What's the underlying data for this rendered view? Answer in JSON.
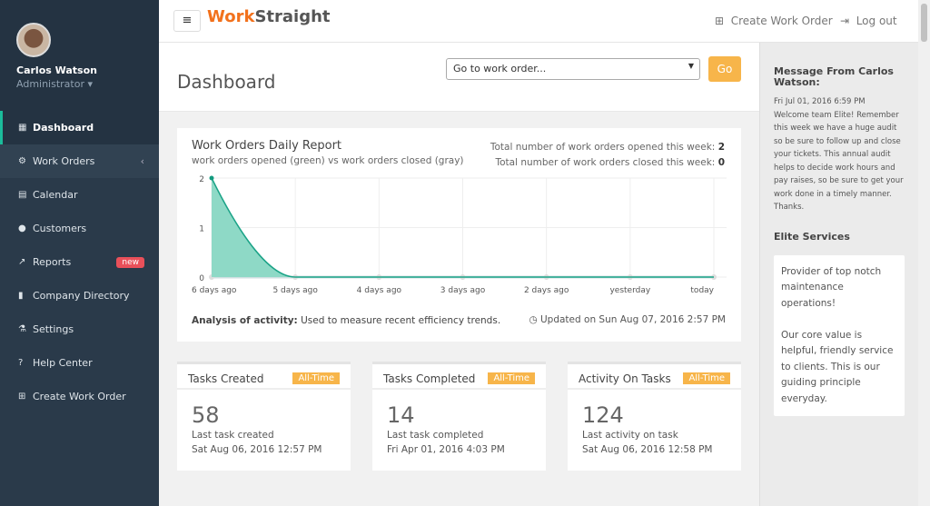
{
  "sidebar": {
    "user_name": "Carlos Watson",
    "user_role": "Administrator",
    "items": [
      {
        "label": "Dashboard",
        "icon": "th-large-icon"
      },
      {
        "label": "Work Orders",
        "icon": "cogs-icon"
      },
      {
        "label": "Calendar",
        "icon": "calendar-icon"
      },
      {
        "label": "Customers",
        "icon": "user-icon"
      },
      {
        "label": "Reports",
        "icon": "line-chart-icon",
        "badge": "new"
      },
      {
        "label": "Company Directory",
        "icon": "book-icon"
      },
      {
        "label": "Settings",
        "icon": "flask-icon"
      },
      {
        "label": "Help Center",
        "icon": "question-icon"
      },
      {
        "label": "Create Work Order",
        "icon": "plus-square-icon"
      }
    ]
  },
  "topbar": {
    "logo_a": "Work",
    "logo_b": "Straight",
    "create": "Create Work Order",
    "logout": "Log out"
  },
  "page": {
    "title": "Dashboard",
    "goto_placeholder": "Go to work order...",
    "go": "Go"
  },
  "report": {
    "title": "Work Orders Daily Report",
    "subtitle": "work orders opened (green) vs work orders closed (gray)",
    "opened_label": "Total number of work orders opened this week:",
    "opened": "2",
    "closed_label": "Total number of work orders closed this week:",
    "closed": "0",
    "analysis_label": "Analysis of activity:",
    "analysis": "Used to measure recent efficiency trends.",
    "updated": "Updated on Sun Aug 07, 2016 2:57 PM"
  },
  "chart_data": {
    "type": "area",
    "categories": [
      "6 days ago",
      "5 days ago",
      "4 days ago",
      "3 days ago",
      "2 days ago",
      "yesterday",
      "today"
    ],
    "series": [
      {
        "values": [
          2,
          0,
          0,
          0,
          0,
          0,
          0
        ],
        "color": "#1bbc9b"
      },
      {
        "values": [
          0,
          0,
          0,
          0,
          0,
          0,
          0
        ],
        "color": "#cccccc"
      }
    ],
    "yticks": [
      "0",
      "1",
      "2"
    ],
    "ylim": [
      0,
      2
    ],
    "grid": true
  },
  "stats": [
    {
      "title": "Tasks Created",
      "tag": "All-Time",
      "value": "58",
      "line1": "Last task created",
      "line2": "Sat Aug 06, 2016 12:57 PM"
    },
    {
      "title": "Tasks Completed",
      "tag": "All-Time",
      "value": "14",
      "line1": "Last task completed",
      "line2": "Fri Apr 01, 2016 4:03 PM"
    },
    {
      "title": "Activity On Tasks",
      "tag": "All-Time",
      "value": "124",
      "line1": "Last activity on task",
      "line2": "Sat Aug 06, 2016 12:58 PM"
    }
  ],
  "message": {
    "heading": "Message From Carlos Watson:",
    "date": "Fri Jul 01, 2016 6:59 PM",
    "body": "Welcome team Elite! Remember this week we have a huge audit so be sure to follow up and close your tickets. This annual audit helps to decide work hours and pay raises, so be sure to get your work done in a timely manner. Thanks."
  },
  "services": {
    "heading": "Elite Services",
    "p1": "Provider of top notch maintenance operations!",
    "p2": "Our core value is helpful, friendly service to clients. This is our guiding principle everyday."
  }
}
